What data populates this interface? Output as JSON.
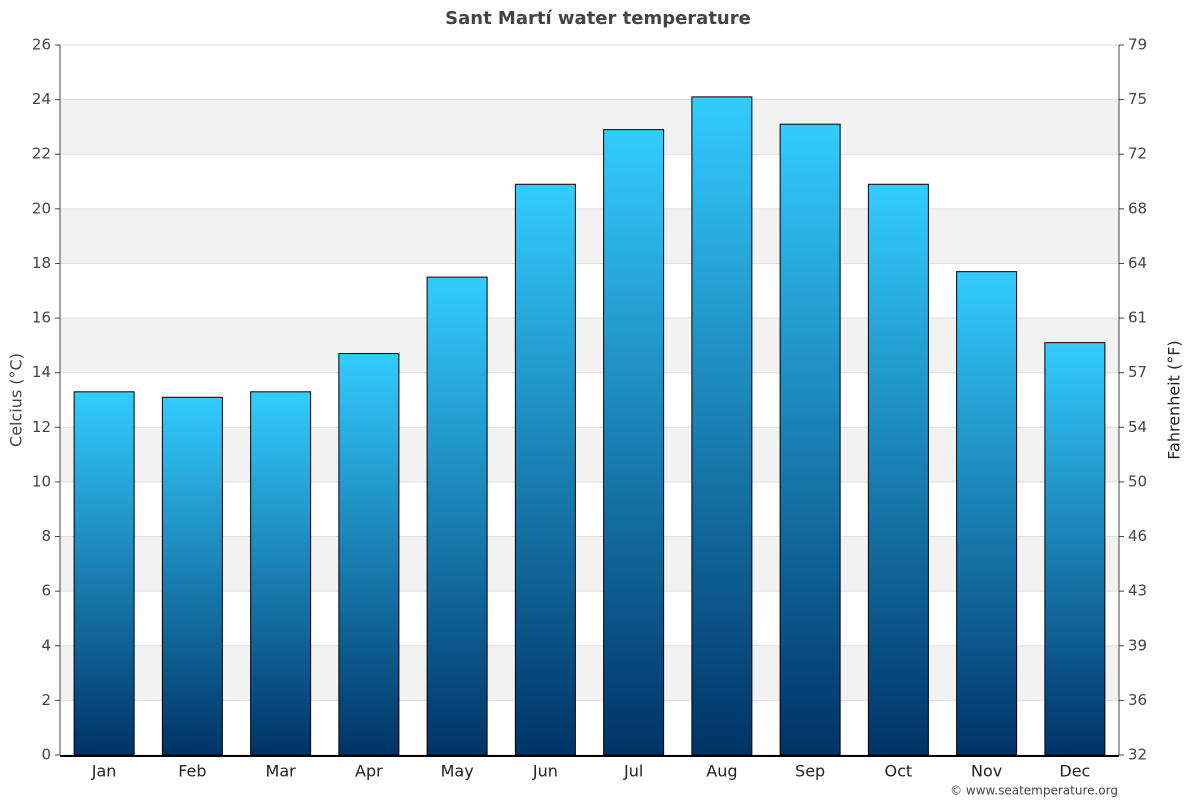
{
  "chart_data": {
    "type": "bar",
    "title": "Sant Martí water temperature",
    "categories": [
      "Jan",
      "Feb",
      "Mar",
      "Apr",
      "May",
      "Jun",
      "Jul",
      "Aug",
      "Sep",
      "Oct",
      "Nov",
      "Dec"
    ],
    "values": [
      13.3,
      13.1,
      13.3,
      14.7,
      17.5,
      20.9,
      22.9,
      24.1,
      23.1,
      20.9,
      17.7,
      15.1
    ],
    "gradient": [
      "#33ccff",
      "#003366"
    ],
    "ylabel": "Celcius (°C)",
    "y2label": "Fahrenheit (°F)",
    "ylim": [
      0,
      26
    ],
    "yticks": [
      0,
      2,
      4,
      6,
      8,
      10,
      12,
      14,
      16,
      18,
      20,
      22,
      24,
      26
    ],
    "y2lim": [
      32,
      78.8
    ],
    "y2ticks": [
      {
        "value": 32,
        "label": "32"
      },
      {
        "value": 35.6,
        "label": "36"
      },
      {
        "value": 39.2,
        "label": "39"
      },
      {
        "value": 42.8,
        "label": "43"
      },
      {
        "value": 46.4,
        "label": "46"
      },
      {
        "value": 50,
        "label": "50"
      },
      {
        "value": 53.6,
        "label": "54"
      },
      {
        "value": 57.2,
        "label": "57"
      },
      {
        "value": 60.8,
        "label": "61"
      },
      {
        "value": 64.4,
        "label": "64"
      },
      {
        "value": 68,
        "label": "68"
      },
      {
        "value": 71.6,
        "label": "72"
      },
      {
        "value": 75.2,
        "label": "75"
      },
      {
        "value": 78.8,
        "label": "79"
      }
    ],
    "grid": true,
    "source": "© www.seatemperature.org"
  }
}
